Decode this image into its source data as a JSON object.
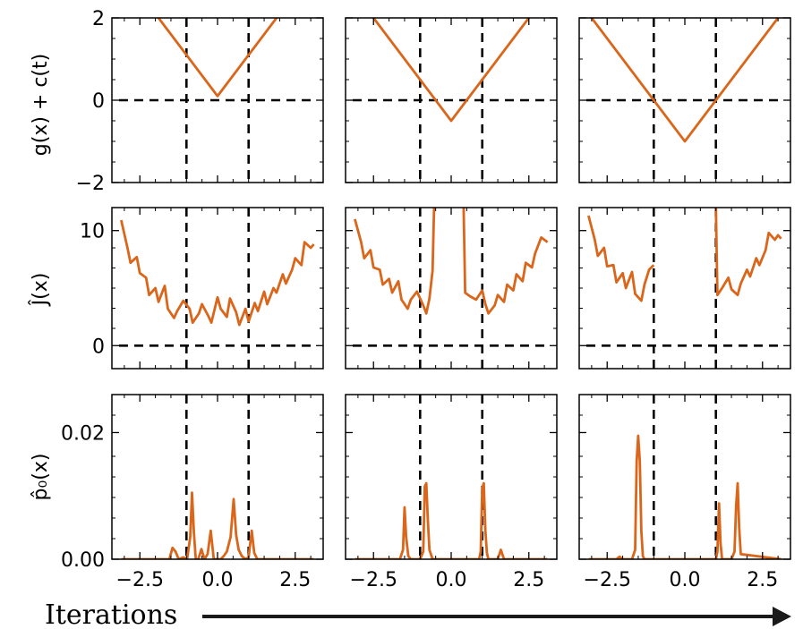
{
  "figure": {
    "footer_label": "Iterations",
    "row_labels": [
      "g(x) + c(t)",
      "Ĵ(x)",
      "p̂₀(x)"
    ],
    "line_color": "#d9661a"
  },
  "chart_data": {
    "type": "line",
    "layout": "3x3 grid of line subplots",
    "x_ticks": [
      -2.5,
      0.0,
      2.5
    ],
    "x_tick_labels": [
      "−2.5",
      "0.0",
      "2.5"
    ],
    "xlim": [
      -3.4,
      3.4
    ],
    "rows": [
      {
        "ylabel": "g(x) + c(t)",
        "ylim": [
          -2,
          2
        ],
        "y_ticks": [
          -2,
          0,
          2
        ],
        "y_tick_labels": [
          "−2",
          "0",
          "2"
        ],
        "hline": 0,
        "panels": [
          {
            "vlines": [
              -1.0,
              1.0
            ],
            "x": [
              -3.4,
              0.0,
              3.4
            ],
            "y": [
              3.5,
              0.1,
              3.5
            ]
          },
          {
            "vlines": [
              -1.0,
              1.0
            ],
            "x": [
              -3.4,
              0.0,
              3.4
            ],
            "y": [
              2.9,
              -0.5,
              2.9
            ]
          },
          {
            "vlines": [
              -1.0,
              1.0
            ],
            "x": [
              -3.4,
              0.0,
              3.4
            ],
            "y": [
              2.4,
              -1.0,
              2.4
            ]
          }
        ]
      },
      {
        "ylabel": "Ĵ(x)",
        "ylim": [
          -2,
          12
        ],
        "y_ticks": [
          0,
          10
        ],
        "y_tick_labels": [
          "0",
          "10"
        ],
        "hline": 0,
        "panels": [
          {
            "vlines": [
              -1.0,
              1.0
            ],
            "x": [
              -3.1,
              -2.9,
              -2.8,
              -2.6,
              -2.5,
              -2.3,
              -2.2,
              -2.0,
              -1.9,
              -1.7,
              -1.6,
              -1.4,
              -1.3,
              -1.1,
              -0.9,
              -0.8,
              -0.6,
              -0.5,
              -0.3,
              -0.2,
              0.0,
              0.1,
              0.3,
              0.4,
              0.6,
              0.7,
              0.9,
              1.0,
              1.2,
              1.3,
              1.5,
              1.6,
              1.8,
              1.9,
              2.1,
              2.2,
              2.4,
              2.5,
              2.7,
              2.8,
              3.0,
              3.1
            ],
            "y": [
              10.9,
              8.5,
              7.2,
              7.7,
              6.3,
              5.9,
              4.4,
              5.0,
              3.8,
              5.2,
              3.2,
              2.4,
              3.0,
              3.9,
              3.2,
              2.0,
              2.8,
              3.6,
              2.6,
              2.0,
              4.2,
              3.2,
              2.5,
              4.1,
              2.9,
              1.8,
              3.2,
              2.1,
              3.7,
              3.0,
              4.7,
              3.6,
              5.0,
              4.6,
              6.2,
              5.4,
              6.6,
              7.6,
              7.0,
              9.0,
              8.5,
              8.8
            ]
          },
          {
            "vlines": [
              -1.0,
              1.0
            ],
            "x": [
              -3.1,
              -2.9,
              -2.8,
              -2.6,
              -2.5,
              -2.3,
              -2.2,
              -2.0,
              -1.9,
              -1.7,
              -1.6,
              -1.4,
              -1.3,
              -1.1,
              -0.9,
              -0.8,
              -0.7,
              -0.6,
              -0.55,
              null,
              0.4,
              0.45,
              0.6,
              0.8,
              1.0,
              1.1,
              1.2,
              1.4,
              1.5,
              1.7,
              1.8,
              2.0,
              2.1,
              2.3,
              2.4,
              2.6,
              2.7,
              2.9,
              3.0,
              3.1
            ],
            "y": [
              11.0,
              9.0,
              7.6,
              8.3,
              6.8,
              6.6,
              5.3,
              5.8,
              4.6,
              5.6,
              4.0,
              3.2,
              4.0,
              4.7,
              3.5,
              2.8,
              4.1,
              6.5,
              12.0,
              null,
              12.0,
              4.6,
              4.3,
              4.0,
              4.8,
              3.6,
              2.8,
              3.5,
              4.4,
              3.8,
              5.3,
              4.8,
              6.2,
              5.6,
              7.2,
              6.8,
              8.0,
              9.4,
              9.2,
              9.0
            ]
          },
          {
            "vlines": [
              -1.0,
              1.0
            ],
            "x": [
              -3.1,
              -2.9,
              -2.8,
              -2.6,
              -2.5,
              -2.3,
              -2.2,
              -2.0,
              -1.9,
              -1.7,
              -1.6,
              -1.4,
              -1.3,
              -1.15,
              -1.0,
              null,
              1.0,
              1.05,
              1.2,
              1.4,
              1.5,
              1.7,
              1.8,
              2.0,
              2.1,
              2.3,
              2.4,
              2.6,
              2.7,
              2.9,
              3.0,
              3.1
            ],
            "y": [
              11.3,
              9.2,
              7.8,
              8.5,
              6.9,
              7.0,
              5.5,
              6.3,
              5.0,
              6.4,
              4.5,
              3.9,
              5.3,
              6.6,
              7.0,
              null,
              12.0,
              4.4,
              5.0,
              5.9,
              4.9,
              4.4,
              5.4,
              6.6,
              6.0,
              7.6,
              7.0,
              8.3,
              9.8,
              9.2,
              9.6,
              9.3
            ]
          }
        ]
      },
      {
        "ylabel": "p̂₀(x)",
        "ylim": [
          0.0,
          0.026
        ],
        "y_ticks": [
          0.0,
          0.02
        ],
        "y_tick_labels": [
          "0.00",
          "0.02"
        ],
        "hline": null,
        "panels": [
          {
            "vlines": [
              -1.0,
              1.0
            ],
            "x": [
              -3.1,
              -1.55,
              -1.45,
              -1.35,
              -1.25,
              -1.1,
              -0.98,
              -0.88,
              -0.82,
              -0.76,
              -0.7,
              -0.62,
              -0.52,
              -0.42,
              -0.32,
              -0.22,
              -0.12,
              0.0,
              0.1,
              0.2,
              0.3,
              0.42,
              0.52,
              0.6,
              0.68,
              0.78,
              0.9,
              1.0,
              1.1,
              1.18,
              1.28,
              1.4,
              3.1
            ],
            "y": [
              0.0,
              0.0,
              0.0018,
              0.0012,
              0.0,
              0.0003,
              0.0,
              0.0035,
              0.0105,
              0.0042,
              0.0,
              0.0,
              0.0016,
              0.0,
              0.0008,
              0.0045,
              0.0,
              0.0,
              0.0,
              0.0005,
              0.0012,
              0.0035,
              0.0095,
              0.0038,
              0.0015,
              0.0005,
              0.0,
              0.0003,
              0.0045,
              0.001,
              0.0,
              0.0,
              0.0
            ]
          },
          {
            "vlines": [
              -1.0,
              1.0
            ],
            "x": [
              -3.1,
              -1.65,
              -1.55,
              -1.5,
              -1.45,
              -1.38,
              -1.3,
              -1.0,
              -0.9,
              -0.85,
              -0.8,
              -0.75,
              -0.7,
              -0.6,
              0.9,
              0.95,
              1.0,
              1.05,
              1.1,
              1.15,
              1.2,
              1.5,
              1.6,
              1.7,
              3.1
            ],
            "y": [
              0.0,
              0.0,
              0.0015,
              0.0082,
              0.0035,
              0.0005,
              0.0,
              0.0,
              0.0012,
              0.0115,
              0.012,
              0.006,
              0.0015,
              0.0,
              0.0,
              0.0012,
              0.0112,
              0.012,
              0.0045,
              0.001,
              0.0,
              0.0,
              0.0015,
              0.0,
              0.0
            ]
          },
          {
            "vlines": [
              -1.0,
              1.0
            ],
            "x": [
              -3.1,
              -2.2,
              -2.1,
              -2.0,
              -1.7,
              -1.6,
              -1.55,
              -1.5,
              -1.45,
              -1.4,
              -1.35,
              -1.3,
              1.0,
              1.05,
              1.1,
              1.15,
              1.2,
              1.5,
              1.6,
              1.65,
              1.7,
              1.75,
              1.8,
              3.1
            ],
            "y": [
              0.0,
              0.0,
              0.0004,
              0.0,
              0.0,
              0.0015,
              0.0155,
              0.0195,
              0.0155,
              0.0045,
              0.0005,
              0.0,
              0.0,
              0.0012,
              0.0088,
              0.0025,
              0.0,
              0.0,
              0.0012,
              0.0085,
              0.012,
              0.005,
              0.0008,
              0.0
            ]
          }
        ]
      }
    ]
  }
}
